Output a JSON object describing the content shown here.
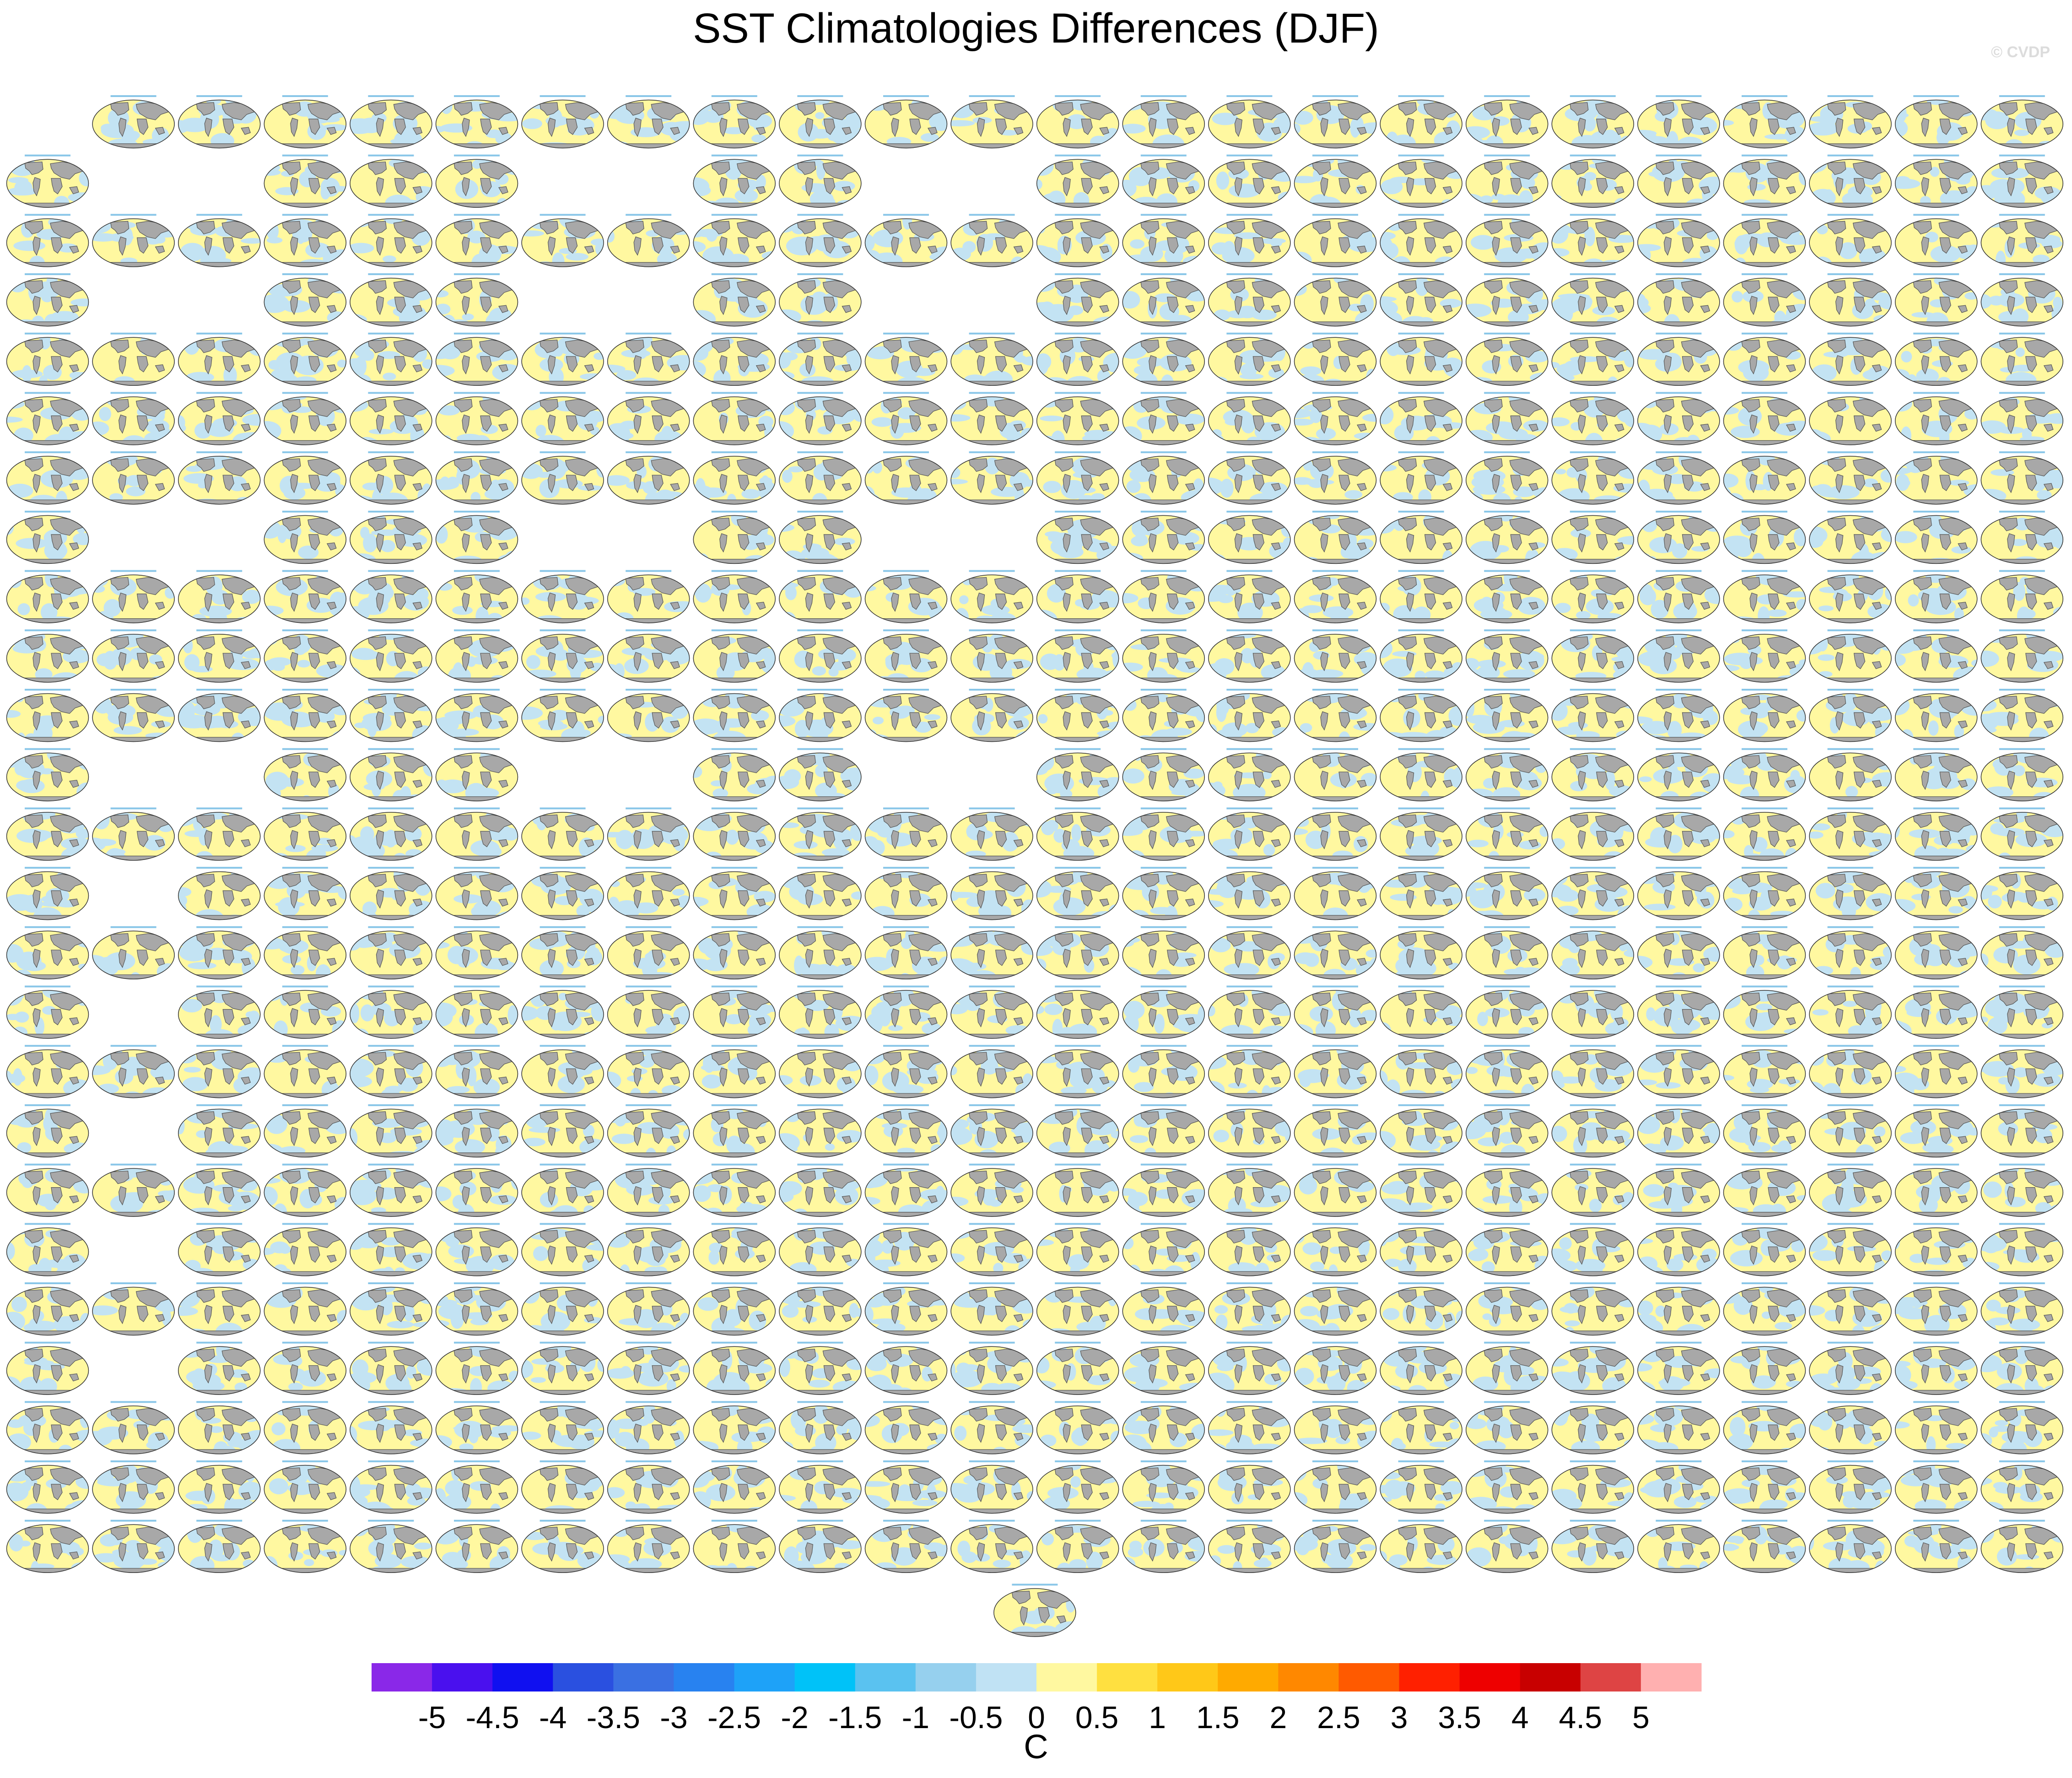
{
  "title": "SST Climatologies Differences (DJF)",
  "credit": "© CVDP",
  "chart_data": {
    "type": "heatmap",
    "title": "SST Climatologies Differences (DJF)",
    "panel_grid": {
      "rows": 25,
      "columns": 24,
      "row_occupancy": [
        "011111111111111111111111",
        "100111001100111111111111",
        "111111111111111111111111",
        "100111001100111111111111",
        "111111111111111111111111",
        "111111111111111111111111",
        "111111111111111111111111",
        "100111001100111111111111",
        "111111111111111111111111",
        "111111111111111111111111",
        "111111111111111111111111",
        "100111001100111111111111",
        "111111111111111111111111",
        "101111111111111111111111",
        "111111111111111111111111",
        "101111111111111111111111",
        "111111111111111111111111",
        "101111111111111111111111",
        "111111111111111111111111",
        "101111111111111111111111",
        "111111111111111111111111",
        "101111111111111111111111",
        "111111111111111111111111",
        "111111111111111111111111",
        "111111111111111111111111"
      ],
      "extra_panel_columns": [
        11.5
      ]
    },
    "panel_colors": {
      "ocean_positive": "#fff8a0",
      "ocean_negative": "#c3e3f3",
      "land": "#a8a8a8",
      "title_text": "#3aa0d8"
    },
    "colorbar": {
      "levels": [
        -5,
        -4.5,
        -4,
        -3.5,
        -3,
        -2.5,
        -2,
        -1.5,
        -1,
        -0.5,
        0,
        0.5,
        1,
        1.5,
        2,
        2.5,
        3,
        3.5,
        4,
        4.5,
        5
      ],
      "tick_labels": [
        "-5",
        "-4.5",
        "-4",
        "-3.5",
        "-3",
        "-2.5",
        "-2",
        "-1.5",
        "-1",
        "-0.5",
        "0",
        "0.5",
        "1",
        "1.5",
        "2",
        "2.5",
        "3",
        "3.5",
        "4",
        "4.5",
        "5"
      ],
      "colors": [
        "#8a28e8",
        "#4a10ee",
        "#1010f0",
        "#2a50e0",
        "#3a70e2",
        "#2882f0",
        "#1ea2f8",
        "#00c2f8",
        "#5ac2f0",
        "#96d0ee",
        "#c0e2f4",
        "#fff8a0",
        "#ffe040",
        "#ffc818",
        "#ffaa00",
        "#ff8800",
        "#ff5a00",
        "#ff2000",
        "#ee0000",
        "#c80000",
        "#de4444",
        "#ffb0b0"
      ],
      "units": "C"
    }
  }
}
